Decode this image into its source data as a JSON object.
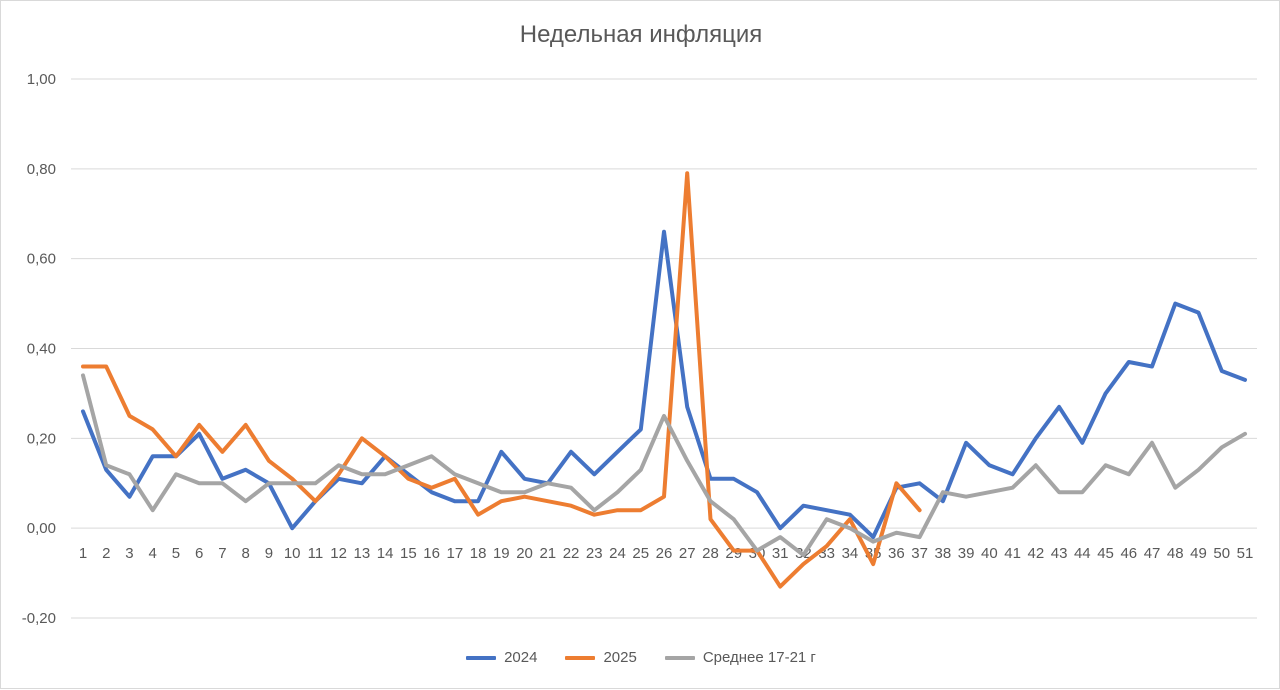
{
  "chart_data": {
    "type": "line",
    "title": "Недельная инфляция",
    "xlabel": "",
    "ylabel": "",
    "ylim": [
      -0.2,
      1.0
    ],
    "yticks": [
      "-0,20",
      "0,00",
      "0,20",
      "0,40",
      "0,60",
      "0,80",
      "1,00"
    ],
    "ytick_values": [
      -0.2,
      0.0,
      0.2,
      0.4,
      0.6,
      0.8,
      1.0
    ],
    "x": [
      1,
      2,
      3,
      4,
      5,
      6,
      7,
      8,
      9,
      10,
      11,
      12,
      13,
      14,
      15,
      16,
      17,
      18,
      19,
      20,
      21,
      22,
      23,
      24,
      25,
      26,
      27,
      28,
      29,
      30,
      31,
      32,
      33,
      34,
      35,
      36,
      37,
      38,
      39,
      40,
      41,
      42,
      43,
      44,
      45,
      46,
      47,
      48,
      49,
      50,
      51
    ],
    "grid": true,
    "legend_position": "bottom",
    "series": [
      {
        "name": "2024",
        "color": "#4472c4",
        "values": [
          0.26,
          0.13,
          0.07,
          0.16,
          0.16,
          0.21,
          0.11,
          0.13,
          0.1,
          0.0,
          0.06,
          0.11,
          0.1,
          0.16,
          0.12,
          0.08,
          0.06,
          0.06,
          0.17,
          0.11,
          0.1,
          0.17,
          0.12,
          0.17,
          0.22,
          0.66,
          0.27,
          0.11,
          0.11,
          0.08,
          0.0,
          0.05,
          0.04,
          0.03,
          -0.02,
          0.09,
          0.1,
          0.06,
          0.19,
          0.14,
          0.12,
          0.2,
          0.27,
          0.19,
          0.3,
          0.37,
          0.36,
          0.5,
          0.48,
          0.35,
          0.33
        ]
      },
      {
        "name": "2025",
        "color": "#ed7d31",
        "values": [
          0.36,
          0.36,
          0.25,
          0.22,
          0.16,
          0.23,
          0.17,
          0.23,
          0.15,
          0.11,
          0.06,
          0.12,
          0.2,
          0.16,
          0.11,
          0.09,
          0.11,
          0.03,
          0.06,
          0.07,
          0.06,
          0.05,
          0.03,
          0.04,
          0.04,
          0.07,
          0.79,
          0.02,
          -0.05,
          -0.05,
          -0.13,
          -0.08,
          -0.04,
          0.02,
          -0.08,
          0.1,
          0.04,
          null,
          null,
          null,
          null,
          null,
          null,
          null,
          null,
          null,
          null,
          null,
          null,
          null,
          null
        ]
      },
      {
        "name": "Среднее 17-21 г",
        "color": "#a5a5a5",
        "values": [
          0.34,
          0.14,
          0.12,
          0.04,
          0.12,
          0.1,
          0.1,
          0.06,
          0.1,
          0.1,
          0.1,
          0.14,
          0.12,
          0.12,
          0.14,
          0.16,
          0.12,
          0.1,
          0.08,
          0.08,
          0.1,
          0.09,
          0.04,
          0.08,
          0.13,
          0.25,
          0.15,
          0.06,
          0.02,
          -0.05,
          -0.02,
          -0.06,
          0.02,
          0.0,
          -0.03,
          -0.01,
          -0.02,
          0.08,
          0.07,
          0.08,
          0.09,
          0.14,
          0.08,
          0.08,
          0.14,
          0.12,
          0.19,
          0.09,
          0.13,
          0.18,
          0.21
        ]
      }
    ]
  }
}
